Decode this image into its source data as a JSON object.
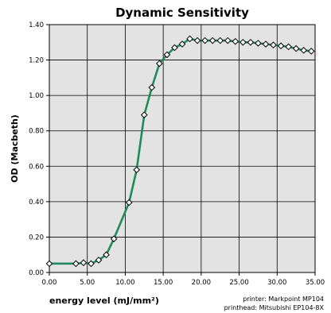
{
  "chart_data": {
    "type": "line",
    "title": "Dynamic Sensitivity",
    "xlabel": "energy level (mJ/mm²)",
    "ylabel": "OD (Macbeth)",
    "xlim": [
      0,
      35
    ],
    "ylim": [
      0,
      1.4
    ],
    "x_ticks": [
      "0.00",
      "5.00",
      "10.00",
      "15.00",
      "20.00",
      "25.00",
      "30.00",
      "35.00"
    ],
    "y_ticks": [
      "0.00",
      "0.20",
      "0.40",
      "0.60",
      "0.80",
      "1.00",
      "1.20",
      "1.40"
    ],
    "grid": true,
    "series": [
      {
        "color": "#1e8a5e",
        "x": [
          0,
          3.5,
          4.5,
          5.5,
          6.5,
          7.5,
          8.5,
          10.5,
          11.5,
          12.5,
          13.5,
          14.5,
          15.5,
          16.5,
          17.5,
          18.5,
          19.5,
          20.5,
          21.5,
          22.5,
          23.5,
          24.5,
          25.5,
          26.5,
          27.5,
          28.5,
          29.5,
          30.5,
          31.5,
          32.5,
          33.5,
          34.5
        ],
        "y": [
          0.05,
          0.05,
          0.055,
          0.05,
          0.07,
          0.1,
          0.19,
          0.395,
          0.58,
          0.89,
          1.045,
          1.18,
          1.23,
          1.27,
          1.29,
          1.32,
          1.31,
          1.31,
          1.31,
          1.31,
          1.31,
          1.305,
          1.3,
          1.3,
          1.295,
          1.29,
          1.285,
          1.28,
          1.275,
          1.265,
          1.255,
          1.25
        ]
      }
    ]
  },
  "notes": {
    "printer": "printer: Markpoint MP104",
    "printhead": "printhead: Mitsubishi EP104-8X"
  }
}
